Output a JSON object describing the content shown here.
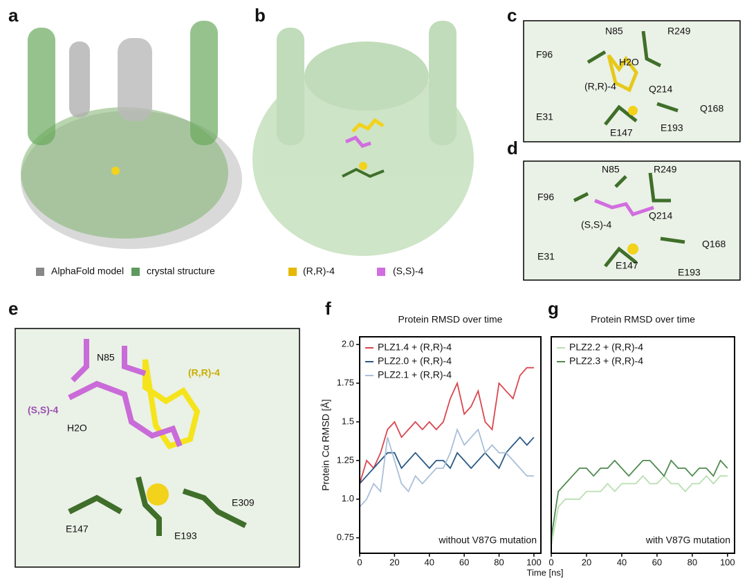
{
  "panels": {
    "a": {
      "label": "a",
      "legend": [
        "AlphaFold model",
        "crystal structure"
      ]
    },
    "b": {
      "label": "b",
      "legend": [
        "(R,R)-4",
        "(S,S)-4"
      ]
    },
    "c": {
      "label": "c",
      "labels": [
        "N85",
        "R249",
        "F96",
        "H2O",
        "(R,R)-4",
        "Q214",
        "Q168",
        "E31",
        "E147",
        "E193"
      ]
    },
    "d": {
      "label": "d",
      "labels": [
        "F96",
        "N85",
        "R249",
        "(S,S)-4",
        "Q214",
        "Q168",
        "E31",
        "E147",
        "E193"
      ]
    },
    "e": {
      "label": "e",
      "labels": [
        "N85",
        "(R,R)-4",
        "(S,S)-4",
        "H2O",
        "E147",
        "E193",
        "E309"
      ]
    },
    "f": {
      "label": "f"
    },
    "g": {
      "label": "g"
    }
  },
  "chart_data": [
    {
      "type": "line",
      "title": "Protein RMSD over time",
      "ylabel": "Protein Cα RMSD [Å]",
      "xlabel": "Time [ns]",
      "annotation": "without V87G mutation",
      "x": [
        0,
        4,
        8,
        12,
        16,
        20,
        24,
        28,
        32,
        36,
        40,
        44,
        48,
        52,
        56,
        60,
        64,
        68,
        72,
        76,
        80,
        84,
        88,
        92,
        96,
        100
      ],
      "xlim": [
        0,
        104
      ],
      "ylim": [
        0.65,
        2.05
      ],
      "xticks": [
        0,
        20,
        40,
        60,
        80,
        100
      ],
      "yticks": [
        0.75,
        {
          "value": 1,
          "label": "1.0"
        },
        1.25,
        1.5,
        1.75,
        {
          "value": 2,
          "label": "2.0"
        }
      ],
      "series": [
        {
          "name": "PLZ1.4 + (R,R)-4",
          "color": "#d9464e",
          "values": [
            1.1,
            1.25,
            1.2,
            1.3,
            1.45,
            1.5,
            1.4,
            1.45,
            1.5,
            1.45,
            1.5,
            1.45,
            1.5,
            1.65,
            1.75,
            1.55,
            1.6,
            1.7,
            1.5,
            1.45,
            1.75,
            1.7,
            1.65,
            1.8,
            1.85,
            1.85
          ]
        },
        {
          "name": "PLZ2.0 + (R,R)-4",
          "color": "#2a5a85",
          "values": [
            1.1,
            1.15,
            1.2,
            1.25,
            1.3,
            1.3,
            1.2,
            1.25,
            1.3,
            1.25,
            1.2,
            1.25,
            1.25,
            1.2,
            1.3,
            1.25,
            1.2,
            1.25,
            1.3,
            1.25,
            1.2,
            1.3,
            1.35,
            1.4,
            1.35,
            1.4
          ]
        },
        {
          "name": "PLZ2.1 + (R,R)-4",
          "color": "#a9bfd9",
          "values": [
            0.95,
            1.0,
            1.1,
            1.05,
            1.4,
            1.25,
            1.1,
            1.05,
            1.15,
            1.1,
            1.15,
            1.2,
            1.2,
            1.3,
            1.45,
            1.35,
            1.4,
            1.45,
            1.3,
            1.35,
            1.3,
            1.3,
            1.25,
            1.2,
            1.15,
            1.15
          ]
        }
      ]
    },
    {
      "type": "line",
      "title": "Protein RMSD over time",
      "annotation": "with V87G mutation",
      "x": [
        0,
        4,
        8,
        12,
        16,
        20,
        24,
        28,
        32,
        36,
        40,
        44,
        48,
        52,
        56,
        60,
        64,
        68,
        72,
        76,
        80,
        84,
        88,
        92,
        96,
        100
      ],
      "xlim": [
        0,
        104
      ],
      "ylim": [
        0.65,
        2.05
      ],
      "xticks": [
        0,
        20,
        40,
        60,
        80,
        100
      ],
      "series": [
        {
          "name": "PLZ2.2 + (R,R)-4",
          "color": "#b8dfb0",
          "values": [
            0.7,
            0.95,
            1.0,
            1.0,
            1.0,
            1.05,
            1.05,
            1.05,
            1.1,
            1.05,
            1.1,
            1.1,
            1.1,
            1.15,
            1.1,
            1.1,
            1.15,
            1.1,
            1.1,
            1.05,
            1.1,
            1.1,
            1.15,
            1.1,
            1.15,
            1.15
          ]
        },
        {
          "name": "PLZ2.3 + (R,R)-4",
          "color": "#4f8a4f",
          "values": [
            0.75,
            1.05,
            1.1,
            1.15,
            1.2,
            1.2,
            1.15,
            1.2,
            1.2,
            1.25,
            1.2,
            1.15,
            1.2,
            1.25,
            1.25,
            1.2,
            1.15,
            1.25,
            1.2,
            1.2,
            1.15,
            1.2,
            1.2,
            1.15,
            1.25,
            1.2
          ]
        }
      ]
    }
  ]
}
